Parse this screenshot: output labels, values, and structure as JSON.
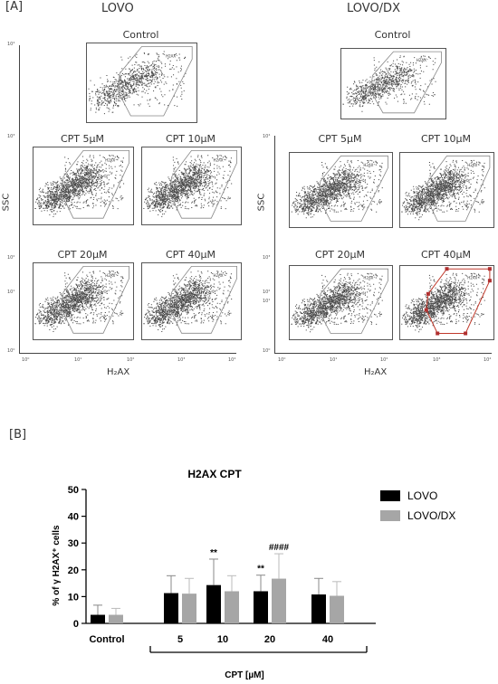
{
  "panelA": {
    "label": "[A]",
    "left": {
      "title": "LOVO",
      "y_axis_label": "SSC",
      "x_axis_label": "H₂AX",
      "y_ticks": [
        "10⁴",
        "10³",
        "10²",
        "10¹",
        "10⁰"
      ],
      "x_ticks": [
        "10⁰",
        "10¹",
        "10²",
        "10³",
        "10⁴"
      ],
      "plots": [
        {
          "label": "Control"
        },
        {
          "label": "CPT 5µM"
        },
        {
          "label": "CPT 10µM"
        },
        {
          "label": "CPT 20µM"
        },
        {
          "label": "CPT 40µM"
        }
      ]
    },
    "right": {
      "title": "LOVO/DX",
      "y_axis_label": "SSC",
      "x_axis_label": "H₂AX",
      "y_ticks": [
        "10⁴",
        "10³",
        "10²",
        "10¹",
        "10⁰"
      ],
      "x_ticks": [
        "10⁰",
        "10¹",
        "10²",
        "10³",
        "10⁴"
      ],
      "plots": [
        {
          "label": "Control"
        },
        {
          "label": "CPT 5µM"
        },
        {
          "label": "CPT 10µM"
        },
        {
          "label": "CPT 20µM"
        },
        {
          "label": "CPT 40µM"
        }
      ]
    },
    "gate_label": "H2AX⁺"
  },
  "panelB": {
    "label": "[B]",
    "chart_data": {
      "type": "bar",
      "title": "H2AX CPT",
      "ylabel": "% of γ H2AX⁺ cells",
      "xlabel": "CPT [µM]",
      "categories": [
        "Control",
        "5",
        "10",
        "20",
        "40"
      ],
      "ylim": [
        0,
        50
      ],
      "yticks": [
        0,
        10,
        20,
        30,
        40,
        50
      ],
      "series": [
        {
          "name": "LOVO",
          "color": "#000000",
          "values": [
            3.2,
            11.3,
            14.3,
            12.0,
            10.8
          ],
          "errors": [
            3.6,
            6.5,
            9.7,
            6.0,
            6.0
          ]
        },
        {
          "name": "LOVO/DX",
          "color": "#a6a6a6",
          "values": [
            3.2,
            11.1,
            12.0,
            16.7,
            10.3
          ],
          "errors": [
            2.4,
            5.7,
            5.8,
            9.3,
            5.3
          ]
        }
      ],
      "annotations": [
        {
          "category": "10",
          "series": "LOVO",
          "text": "**"
        },
        {
          "category": "20",
          "series": "LOVO",
          "text": "**"
        },
        {
          "category": "20",
          "series": "LOVO/DX",
          "text": "####"
        }
      ],
      "legend_position": "right",
      "grid": false
    }
  }
}
